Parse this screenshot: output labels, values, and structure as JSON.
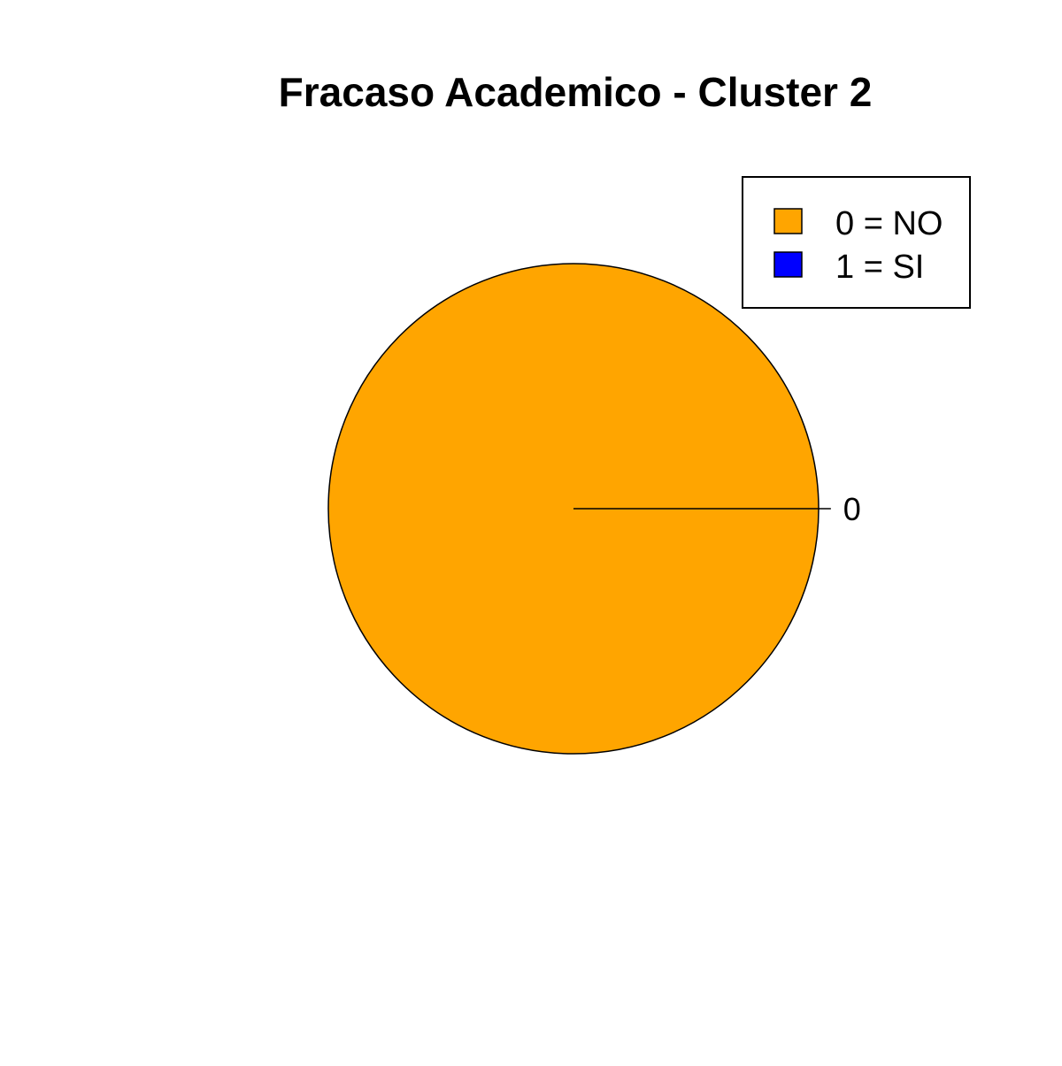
{
  "chart_data": {
    "type": "pie",
    "title": "Fracaso Academico - Cluster 2",
    "categories": [
      "0",
      "1"
    ],
    "values": [
      1,
      0
    ],
    "slice_labels": [
      "0"
    ],
    "colors": [
      "#FFA500",
      "#0000FF"
    ],
    "border_color": "#000000",
    "legend": {
      "position": "top-right",
      "entries": [
        {
          "label": "0 = NO",
          "color": "#FFA500"
        },
        {
          "label": "1 = SI",
          "color": "#0000FF"
        }
      ]
    }
  }
}
